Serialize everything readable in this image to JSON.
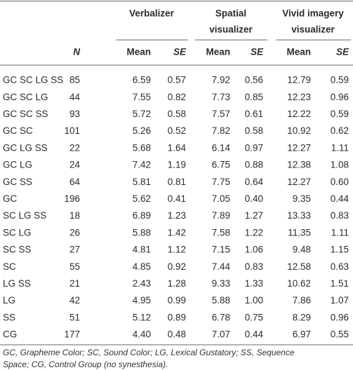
{
  "table": {
    "groups": [
      {
        "lines": [
          "Verbalizer"
        ]
      },
      {
        "lines": [
          "Spatial",
          "visualizer"
        ]
      },
      {
        "lines": [
          "Vivid imagery",
          "visualizer"
        ]
      }
    ],
    "subheaders": [
      "N",
      "Mean",
      "SE",
      "Mean",
      "SE",
      "Mean",
      "SE"
    ],
    "rows": [
      [
        "GC SC LG SS",
        "85",
        "6.59",
        "0.57",
        "7.92",
        "0.56",
        "12.79",
        "0.59"
      ],
      [
        "GC SC LG",
        "44",
        "7.55",
        "0.82",
        "7.73",
        "0.85",
        "12.23",
        "0.96"
      ],
      [
        "GC SC SS",
        "93",
        "5.72",
        "0.58",
        "7.57",
        "0.61",
        "12.22",
        "0.59"
      ],
      [
        "GC SC",
        "101",
        "5.26",
        "0.52",
        "7.82",
        "0.58",
        "10.92",
        "0.62"
      ],
      [
        "GC LG SS",
        "22",
        "5.68",
        "1.64",
        "6.14",
        "0.97",
        "12.27",
        "1.11"
      ],
      [
        "GC LG",
        "24",
        "7.42",
        "1.19",
        "6.75",
        "0.88",
        "12.38",
        "1.08"
      ],
      [
        "GC SS",
        "64",
        "5.81",
        "0.81",
        "7.75",
        "0.64",
        "12.27",
        "0.60"
      ],
      [
        "GC",
        "196",
        "5.62",
        "0.41",
        "7.05",
        "0.40",
        "9.35",
        "0.44"
      ],
      [
        "SC LG SS",
        "18",
        "6.89",
        "1.23",
        "7.89",
        "1.27",
        "13.33",
        "0.83"
      ],
      [
        "SC LG",
        "26",
        "5.88",
        "1.42",
        "7.58",
        "1.22",
        "11.35",
        "1.11"
      ],
      [
        "SC SS",
        "27",
        "4.81",
        "1.12",
        "7.15",
        "1.06",
        "9.48",
        "1.15"
      ],
      [
        "SC",
        "55",
        "4.85",
        "0.92",
        "7.44",
        "0.83",
        "12.58",
        "0.63"
      ],
      [
        "LG SS",
        "21",
        "2.43",
        "1.28",
        "9.33",
        "1.33",
        "10.62",
        "1.51"
      ],
      [
        "LG",
        "42",
        "4.95",
        "0.99",
        "5.88",
        "1.00",
        "7.86",
        "1.07"
      ],
      [
        "SS",
        "51",
        "5.12",
        "0.89",
        "6.78",
        "0.75",
        "8.29",
        "0.96"
      ],
      [
        "CG",
        "177",
        "4.40",
        "0.48",
        "7.07",
        "0.44",
        "6.97",
        "0.55"
      ]
    ],
    "footnote": [
      "GC, Grapheme Color; SC, Sound Color; LG, Lexical Gustatory; SS, Sequence",
      "Space; CG, Control Group (no synesthesia)."
    ]
  }
}
